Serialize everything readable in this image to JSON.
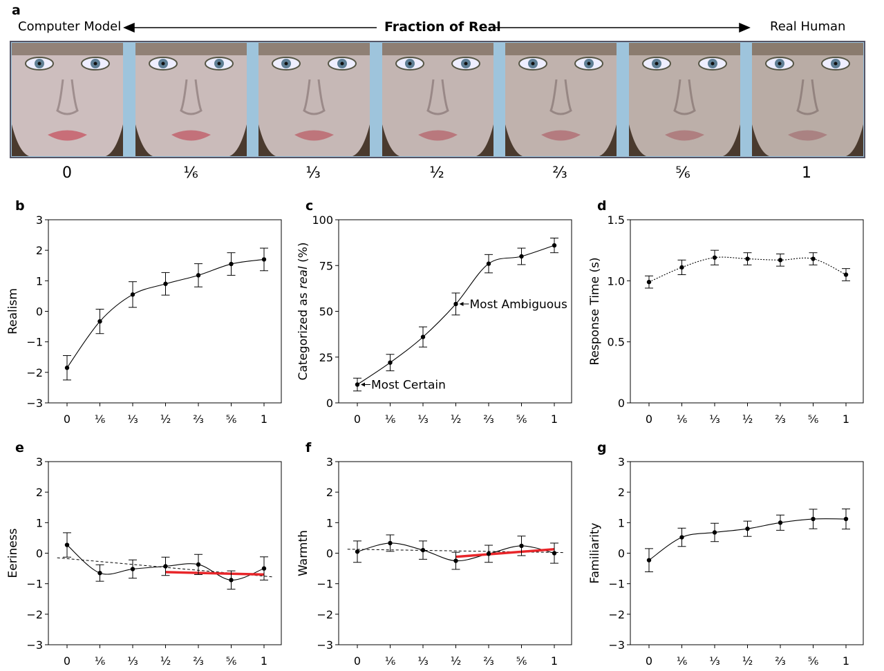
{
  "panel_a": {
    "label": "a",
    "left_label": "Computer Model",
    "center_label": "Fraction of Real",
    "right_label": "Real Human",
    "fractions": [
      "0",
      "⅙",
      "⅓",
      "½",
      "⅔",
      "⅚",
      "1"
    ],
    "strip_color": "#9ec4dc"
  },
  "chart_data": [
    {
      "id": "b",
      "label": "b",
      "type": "line",
      "ylabel": "Realism",
      "x": [
        "0",
        "⅙",
        "⅓",
        "½",
        "⅔",
        "⅚",
        "1"
      ],
      "ylim": [
        -3,
        3
      ],
      "yticks": [
        "3",
        "2",
        "1",
        "0",
        "−1",
        "−2",
        "−3"
      ],
      "ytickvals": [
        3,
        2,
        1,
        0,
        -1,
        -2,
        -3
      ],
      "values": [
        -1.85,
        -0.33,
        0.55,
        0.9,
        1.18,
        1.55,
        1.7
      ],
      "errors": [
        0.4,
        0.4,
        0.42,
        0.37,
        0.38,
        0.37,
        0.37
      ],
      "line_style": "solid"
    },
    {
      "id": "c",
      "label": "c",
      "type": "line",
      "ylabel": "Categorized as real (%)",
      "x": [
        "0",
        "⅙",
        "⅓",
        "½",
        "⅔",
        "⅚",
        "1"
      ],
      "ylim": [
        0,
        100
      ],
      "yticks": [
        "100",
        "75",
        "50",
        "25",
        "0"
      ],
      "ytickvals": [
        100,
        75,
        50,
        25,
        0
      ],
      "values": [
        10,
        22,
        36,
        54,
        76,
        80,
        86
      ],
      "errors": [
        3.5,
        4.5,
        5.5,
        6,
        5,
        4.5,
        4
      ],
      "line_style": "solid",
      "annotations": [
        {
          "text": "Most Certain",
          "point": 0
        },
        {
          "text": "Most Ambiguous",
          "point": 3
        }
      ]
    },
    {
      "id": "d",
      "label": "d",
      "type": "line",
      "ylabel": "Response Time (s)",
      "x": [
        "0",
        "⅙",
        "⅓",
        "½",
        "⅔",
        "⅚",
        "1"
      ],
      "ylim": [
        0,
        1.5
      ],
      "yticks": [
        "1.5",
        "1.0",
        "0.5",
        "0"
      ],
      "ytickvals": [
        1.5,
        1.0,
        0.5,
        0
      ],
      "values": [
        0.99,
        1.11,
        1.19,
        1.18,
        1.17,
        1.18,
        1.05
      ],
      "errors": [
        0.05,
        0.06,
        0.06,
        0.05,
        0.05,
        0.05,
        0.05
      ],
      "line_style": "dotted"
    },
    {
      "id": "e",
      "label": "e",
      "type": "line",
      "ylabel": "Eeriness",
      "x": [
        "0",
        "⅙",
        "⅓",
        "½",
        "⅔",
        "⅚",
        "1"
      ],
      "ylim": [
        -3,
        3
      ],
      "yticks": [
        "3",
        "2",
        "1",
        "0",
        "−1",
        "−2",
        "−3"
      ],
      "ytickvals": [
        3,
        2,
        1,
        0,
        -1,
        -2,
        -3
      ],
      "values": [
        0.27,
        -0.65,
        -0.52,
        -0.43,
        -0.37,
        -0.88,
        -0.5
      ],
      "errors": [
        0.4,
        0.27,
        0.3,
        0.3,
        0.33,
        0.3,
        0.38
      ],
      "line_style": "solid",
      "linear_fit": {
        "from": [
          -0.3,
          -0.15
        ],
        "to": [
          6.3,
          -0.78
        ]
      },
      "red_fit": {
        "from": [
          3,
          -0.62
        ],
        "to": [
          6,
          -0.7
        ]
      }
    },
    {
      "id": "f",
      "label": "f",
      "type": "line",
      "ylabel": "Warmth",
      "x": [
        "0",
        "⅙",
        "⅓",
        "½",
        "⅔",
        "⅚",
        "1"
      ],
      "ylim": [
        -3,
        3
      ],
      "yticks": [
        "3",
        "2",
        "1",
        "0",
        "−1",
        "−2",
        "−3"
      ],
      "ytickvals": [
        3,
        2,
        1,
        0,
        -1,
        -2,
        -3
      ],
      "values": [
        0.05,
        0.33,
        0.1,
        -0.25,
        -0.02,
        0.24,
        0
      ],
      "errors": [
        0.35,
        0.27,
        0.3,
        0.28,
        0.28,
        0.32,
        0.33
      ],
      "line_style": "solid",
      "linear_fit": {
        "from": [
          -0.3,
          0.13
        ],
        "to": [
          6.3,
          0.02
        ]
      },
      "red_fit": {
        "from": [
          3,
          -0.12
        ],
        "to": [
          6,
          0.13
        ]
      }
    },
    {
      "id": "g",
      "label": "g",
      "type": "line",
      "ylabel": "Familiarity",
      "x": [
        "0",
        "⅙",
        "⅓",
        "½",
        "⅔",
        "⅚",
        "1"
      ],
      "ylim": [
        -3,
        3
      ],
      "yticks": [
        "3",
        "2",
        "1",
        "0",
        "−1",
        "−2",
        "−3"
      ],
      "ytickvals": [
        3,
        2,
        1,
        0,
        -1,
        -2,
        -3
      ],
      "values": [
        -0.23,
        0.52,
        0.68,
        0.8,
        1.0,
        1.12,
        1.12
      ],
      "errors": [
        0.38,
        0.3,
        0.3,
        0.25,
        0.25,
        0.32,
        0.33
      ],
      "line_style": "solid"
    }
  ],
  "colors": {
    "red_fit": "#e8262a",
    "line": "#000000"
  }
}
